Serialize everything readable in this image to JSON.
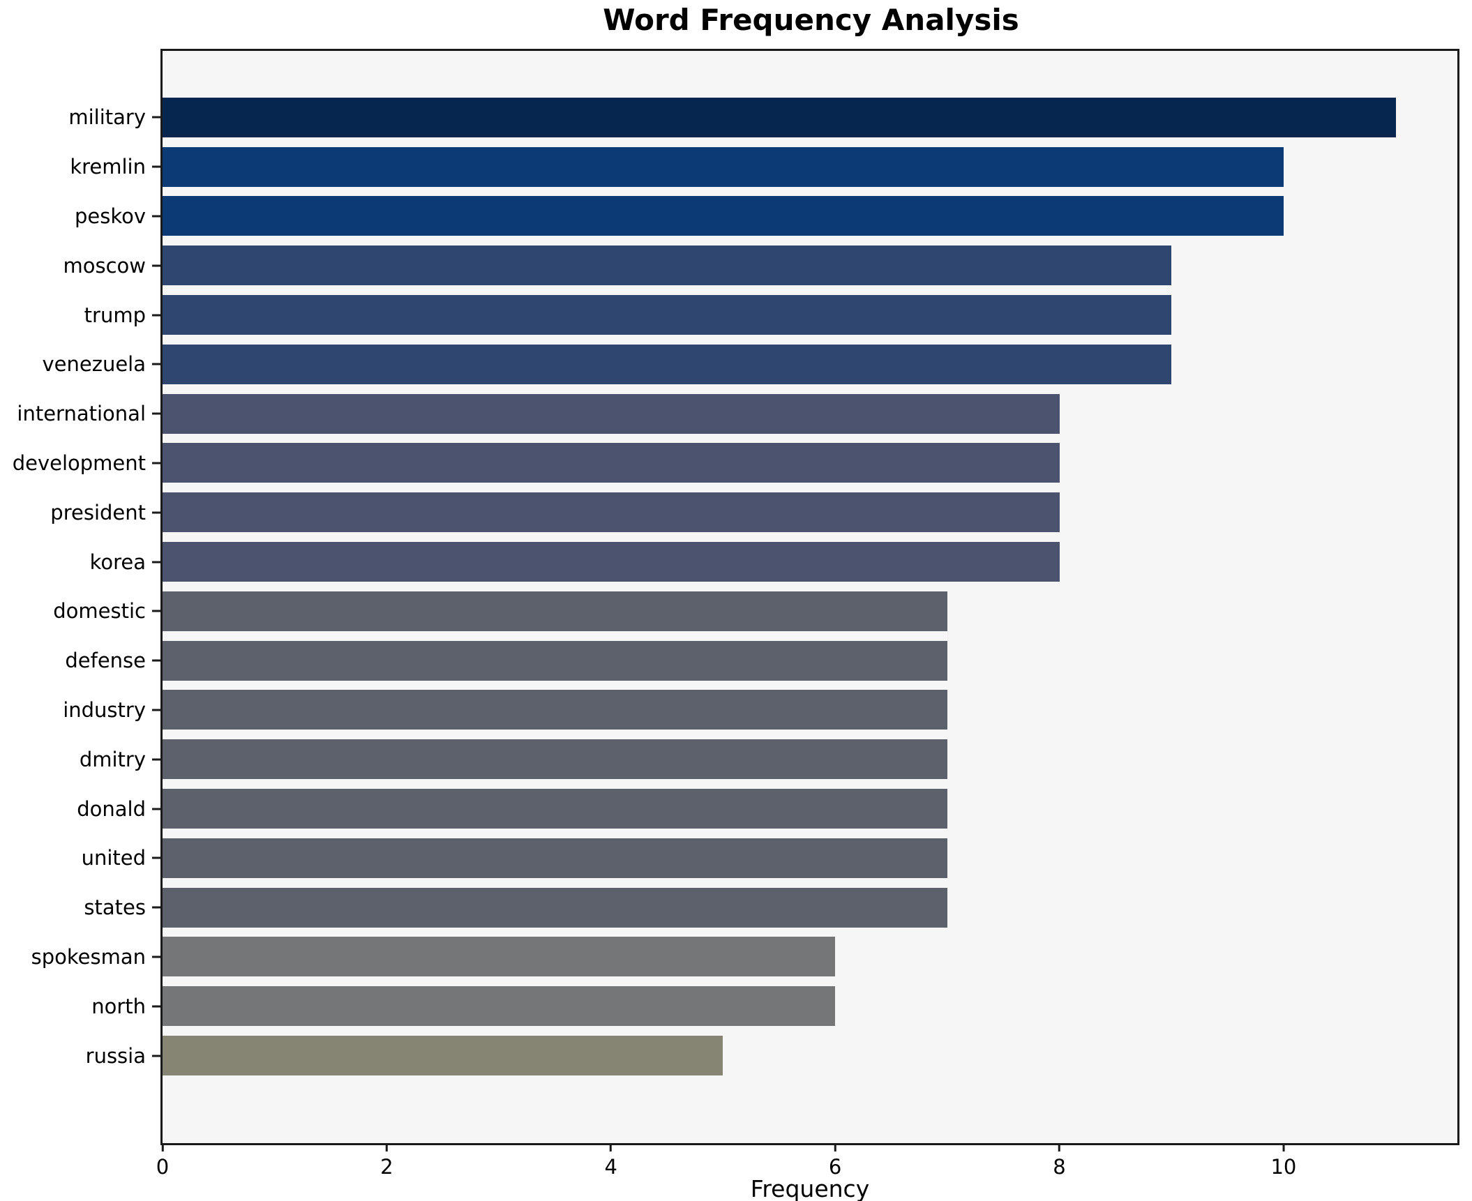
{
  "chart_data": {
    "type": "bar",
    "orientation": "horizontal",
    "title": "Word Frequency Analysis",
    "xlabel": "Frequency",
    "ylabel": "",
    "xlim": [
      0,
      11.55
    ],
    "x_ticks": [
      0,
      2,
      4,
      6,
      8,
      10
    ],
    "grid": false,
    "legend_position": "none",
    "categories": [
      "military",
      "kremlin",
      "peskov",
      "moscow",
      "trump",
      "venezuela",
      "international",
      "development",
      "president",
      "korea",
      "domestic",
      "defense",
      "industry",
      "dmitry",
      "donald",
      "united",
      "states",
      "spokesman",
      "north",
      "russia"
    ],
    "values": [
      11,
      10,
      10,
      9,
      9,
      9,
      8,
      8,
      8,
      8,
      7,
      7,
      7,
      7,
      7,
      7,
      7,
      6,
      6,
      5
    ],
    "bar_colors": [
      "#062650",
      "#0c3a75",
      "#0c3a75",
      "#2f4671",
      "#2f4671",
      "#2f4671",
      "#4b536e",
      "#4b536e",
      "#4b536e",
      "#4b536e",
      "#5d616b",
      "#5d616b",
      "#5d616b",
      "#5d616b",
      "#5d616b",
      "#5d616b",
      "#5d616b",
      "#747678",
      "#747678",
      "#868473"
    ]
  },
  "style": {
    "plot_background": "#f6f6f7",
    "figure_background": "#ffffff",
    "spine_color": "#1a1a1a",
    "text_color": "#000000"
  }
}
